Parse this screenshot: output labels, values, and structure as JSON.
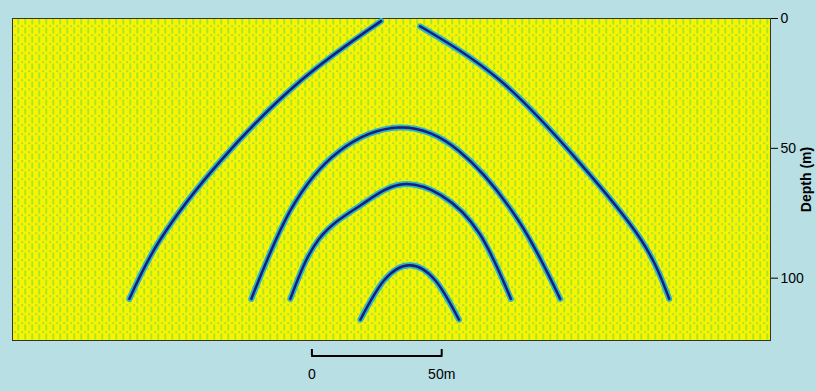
{
  "chart_data": {
    "type": "seismic_section",
    "y_label": "Depth (m)",
    "xlim": [
      0,
      292
    ],
    "ylim": [
      0,
      124
    ],
    "yticks": [
      0,
      50,
      100
    ],
    "tick_labels": "y",
    "color": "#1c1c7a",
    "reflectors": [
      {
        "x": [
          107,
          118,
          134,
          149,
          165,
          180,
          192
        ],
        "depth": [
          108,
          85,
          72,
          64,
          68,
          83,
          108
        ]
      },
      {
        "x": [
          92,
          107,
          126,
          149,
          172,
          195,
          211
        ],
        "depth": [
          108,
          74,
          51,
          42,
          51,
          78,
          108
        ]
      },
      {
        "x": [
          142,
          111,
          80,
          57,
          45
        ],
        "depth": [
          1,
          24,
          55,
          85,
          108
        ]
      },
      {
        "x": [
          157,
          188,
          218,
          242,
          253
        ],
        "depth": [
          3,
          24,
          55,
          85,
          108
        ]
      },
      {
        "x": [
          134,
          143,
          153,
          163,
          172
        ],
        "depth": [
          116,
          101,
          95,
          101,
          116
        ]
      }
    ],
    "scale_bar": {
      "values": [
        0,
        50
      ],
      "labels": [
        "0",
        "50m"
      ]
    }
  }
}
